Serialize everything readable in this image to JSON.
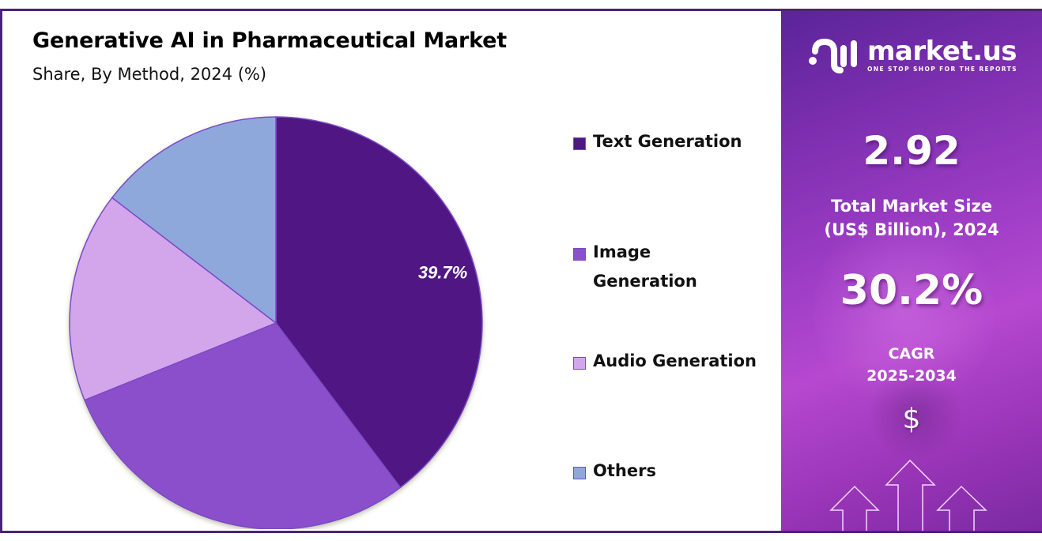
{
  "header": {
    "title": "Generative AI in Pharmaceutical Market",
    "subtitle": "Share, By Method, 2024 (%)"
  },
  "colors": {
    "frame_border": "#4a2378",
    "text_generation": "#4f1784",
    "image_generation": "#8b50cc",
    "audio_generation": "#d3a6ec",
    "others": "#8fa8dc",
    "slice_outline": "#7a4bc4"
  },
  "legend": {
    "items": [
      {
        "label": "Text Generation",
        "color": "#4f1784"
      },
      {
        "label": "Image Generation",
        "color": "#8b50cc"
      },
      {
        "label": "Audio Generation",
        "color": "#d3a6ec"
      },
      {
        "label": "Others",
        "color": "#8fa8dc"
      }
    ]
  },
  "side_panel": {
    "logo": {
      "name": "market.us",
      "tagline": "ONE STOP SHOP FOR THE REPORTS"
    },
    "market_size_value": "2.92",
    "market_size_label_line1": "Total Market Size",
    "market_size_label_line2": "(US$ Billion), 2024",
    "cagr_value": "30.2%",
    "cagr_label_line1": "CAGR",
    "cagr_label_line2": "2025-2034",
    "currency_symbol": "$"
  },
  "chart_data": {
    "type": "pie",
    "title": "Generative AI in Pharmaceutical Market",
    "subtitle": "Share, By Method, 2024 (%)",
    "categories": [
      "Text Generation",
      "Image Generation",
      "Audio Generation",
      "Others"
    ],
    "values": [
      39.7,
      29.2,
      16.5,
      14.6
    ],
    "colors": [
      "#4f1784",
      "#8b50cc",
      "#d3a6ec",
      "#8fa8dc"
    ],
    "start_angle": "12 o'clock, clockwise",
    "data_labels": [
      {
        "category": "Text Generation",
        "text": "39.7%"
      }
    ],
    "legend_position": "right"
  }
}
